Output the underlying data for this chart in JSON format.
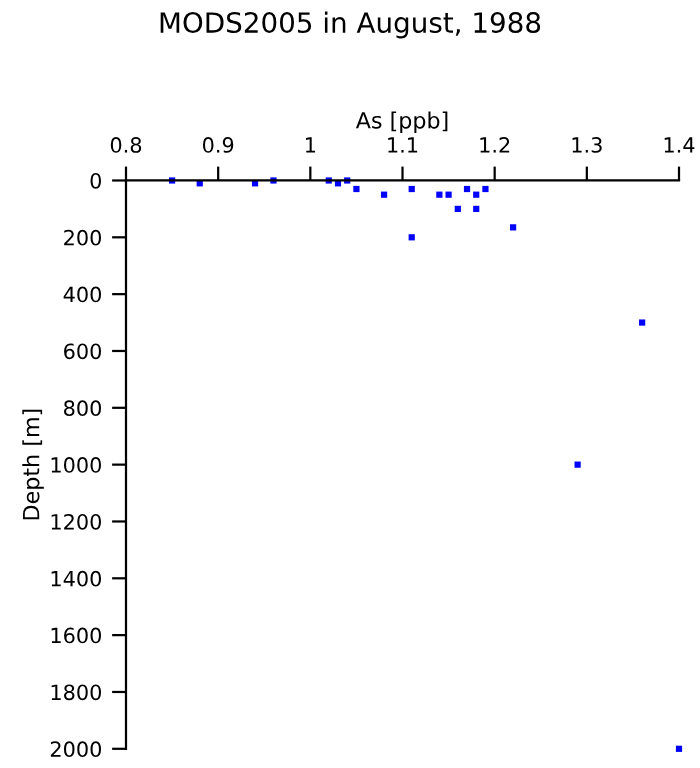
{
  "chart_data": {
    "type": "scatter",
    "title": "MODS2005 in August, 1988",
    "xlabel": "As [ppb]",
    "ylabel": "Depth [m]",
    "x": [
      0.85,
      0.88,
      0.94,
      0.96,
      1.02,
      1.03,
      1.04,
      1.05,
      1.08,
      1.11,
      1.11,
      1.14,
      1.15,
      1.16,
      1.17,
      1.18,
      1.18,
      1.19,
      1.22,
      1.36,
      1.29,
      1.4
    ],
    "series": [
      {
        "color": "#0000ff",
        "values": [
          0,
          10,
          10,
          0,
          0,
          10,
          0,
          30,
          50,
          30,
          200,
          50,
          50,
          100,
          30,
          50,
          100,
          30,
          165,
          500,
          1000,
          2000
        ]
      }
    ],
    "xlim": [
      0.8,
      1.4
    ],
    "xticks": [
      0.8,
      0.9,
      1,
      1.1,
      1.2,
      1.3,
      1.4
    ],
    "ylim": [
      2000,
      0
    ],
    "yticks": [
      0,
      200,
      400,
      600,
      800,
      1000,
      1200,
      1400,
      1600,
      1800,
      2000
    ],
    "marker": "square",
    "grid": false,
    "legend": false
  }
}
